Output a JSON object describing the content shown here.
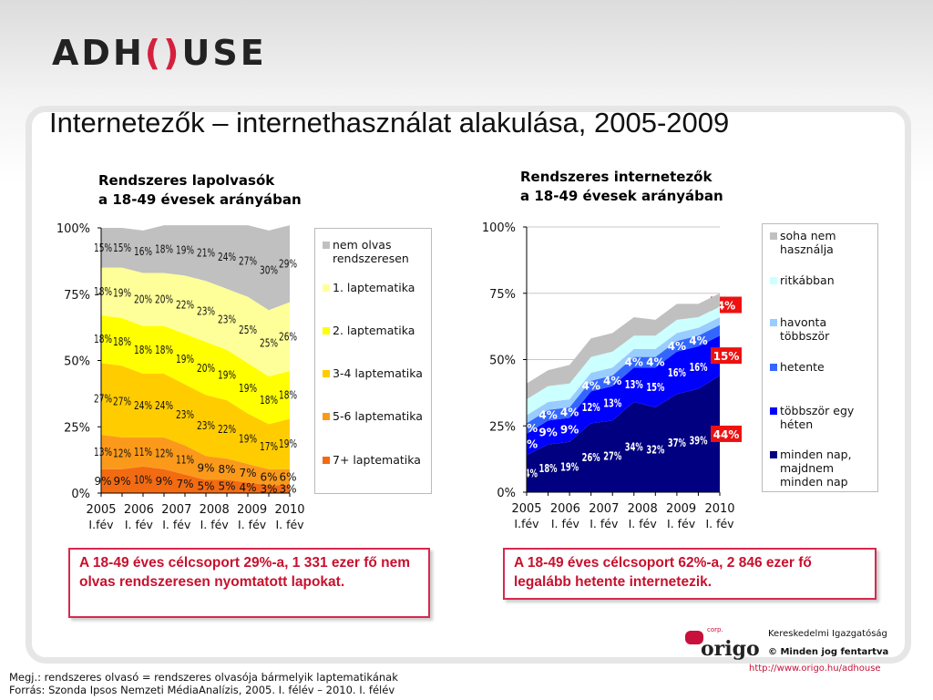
{
  "header": {
    "logo": "ADHOUSE",
    "title": "Internetezők – internethasználat alakulása, 2005-2009"
  },
  "chart_data": [
    {
      "type": "area",
      "stacked": true,
      "title_lines": [
        "Rendszeres lapolvasók",
        "a 18-49 évesek arányában"
      ],
      "ylim": [
        0,
        100
      ],
      "yticks": [
        "0%",
        "25%",
        "50%",
        "75%",
        "100%"
      ],
      "xticks": [
        [
          "2005",
          "I.fév"
        ],
        [
          "2006",
          "I. fév"
        ],
        [
          "2007",
          "I. fév"
        ],
        [
          "2008",
          "I. fév"
        ],
        [
          "2009",
          "I. fév"
        ],
        [
          "2010",
          "I. fév"
        ]
      ],
      "series": [
        {
          "name": "7+ laptematika",
          "color": "#f26b12",
          "values": [
            9,
            9,
            10,
            9,
            7,
            5,
            5,
            4,
            3,
            3
          ],
          "labeled": true
        },
        {
          "name": "5-6 laptematika",
          "color": "#fb9a1a",
          "values": [
            13,
            12,
            11,
            12,
            11,
            9,
            8,
            7,
            6,
            6
          ],
          "labeled": true
        },
        {
          "name": "3-4 laptematika",
          "color": "#ffcc00",
          "values": [
            27,
            27,
            24,
            24,
            23,
            23,
            22,
            19,
            17,
            19
          ],
          "labeled": true
        },
        {
          "name": "2. laptematika",
          "color": "#ffff00",
          "values": [
            18,
            18,
            18,
            18,
            19,
            20,
            19,
            19,
            18,
            18
          ],
          "labeled": true
        },
        {
          "name": "1. laptematika",
          "color": "#ffff99",
          "values": [
            18,
            19,
            20,
            20,
            22,
            23,
            23,
            25,
            25,
            26
          ],
          "labeled": true
        },
        {
          "name": "nem olvas rendszeresen",
          "color": "#c0c0c0",
          "values": [
            15,
            15,
            16,
            18,
            19,
            21,
            24,
            27,
            30,
            29
          ],
          "labeled": true
        }
      ],
      "callout": "A 18-49 éves célcsoport 29%-a, 1 331 ezer fő nem olvas rendszeresen nyomtatott lapokat."
    },
    {
      "type": "area",
      "stacked": true,
      "title_lines": [
        "Rendszeres internetezők",
        "a 18-49 évesek arányában"
      ],
      "ylim": [
        0,
        100
      ],
      "yticks": [
        "0%",
        "25%",
        "50%",
        "75%",
        "100%"
      ],
      "xticks": [
        [
          "2005",
          "I.fév"
        ],
        [
          "2006",
          "I. fév"
        ],
        [
          "2007",
          "I. fév"
        ],
        [
          "2008",
          "I. fév"
        ],
        [
          "2009",
          "I. fév"
        ],
        [
          "2010",
          "I. fév"
        ]
      ],
      "series": [
        {
          "name": "minden nap, majdnem minden nap",
          "color": "#000080",
          "values": [
            14,
            18,
            19,
            26,
            27,
            34,
            32,
            37,
            39,
            44
          ],
          "labeled": true,
          "last_label": "44%"
        },
        {
          "name": "többször egy héten",
          "color": "#0000ff",
          "values": [
            8,
            9,
            9,
            12,
            13,
            13,
            15,
            16,
            16,
            15
          ],
          "labeled": true,
          "last_label": "15%"
        },
        {
          "name": "hetente",
          "color": "#3366ff",
          "values": [
            4,
            4,
            4,
            4,
            4,
            4,
            4,
            4,
            4,
            4
          ],
          "labeled": true,
          "last_label": "4%"
        },
        {
          "name": "havonta többször",
          "color": "#99ccff",
          "values": [
            3,
            3,
            3,
            3,
            3,
            3,
            3,
            3,
            3,
            3
          ],
          "labeled": false
        },
        {
          "name": "ritkábban",
          "color": "#ccffff",
          "values": [
            6,
            6,
            6,
            6,
            6,
            5,
            5,
            5,
            4,
            4
          ],
          "labeled": false
        },
        {
          "name": "soha nem használja",
          "color": "#c0c0c0",
          "values": [
            6,
            6,
            7,
            7,
            7,
            7,
            6,
            6,
            5,
            5
          ],
          "labeled": false
        }
      ],
      "callout": "A 18-49 éves célcsoport 62%-a, 2 846 ezer fő legalább hetente internetezik."
    }
  ],
  "legends": [
    [
      "nem olvas rendszeresen",
      "1. laptematika",
      "2. laptematika",
      "3-4 laptematika",
      "5-6 laptematika",
      "7+ laptematika"
    ],
    [
      "soha nem használja",
      "ritkábban",
      "havonta többször",
      "hetente",
      "többször egy héten",
      "minden nap, majdnem minden nap"
    ]
  ],
  "footer": {
    "note": "Megj.: rendszeres olvasó = rendszeres olvasója bármelyik laptematikának",
    "source": "Forrás: Szonda Ipsos Nemzeti MédiaAnalízis, 2005. I. félév – 2010. I. félév"
  },
  "brand": {
    "logo": "origo",
    "logo_small": "corp.",
    "line1": "Kereskedelmi Igazgatóság",
    "line2": "© Minden jog fentartva",
    "url": "http://www.origo.hu/adhouse"
  }
}
